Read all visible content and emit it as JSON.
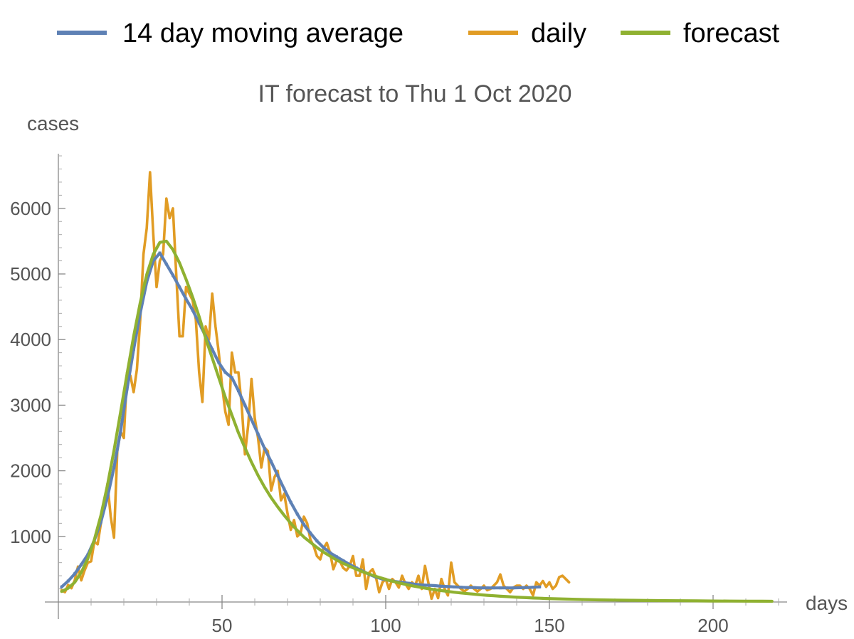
{
  "chart_data": {
    "type": "line",
    "title": "IT forecast to Thu 1 Oct 2020",
    "xlabel": "days",
    "ylabel": "cases",
    "xlim": [
      0,
      220
    ],
    "ylim": [
      0,
      6900
    ],
    "x_ticks": [
      50,
      100,
      150,
      200
    ],
    "y_ticks": [
      1000,
      2000,
      3000,
      4000,
      5000,
      6000
    ],
    "grid": false,
    "legend_position": "top",
    "series": [
      {
        "name": "14 day moving average",
        "color": "#5e81b5",
        "points": [
          [
            1,
            230
          ],
          [
            3,
            320
          ],
          [
            5,
            430
          ],
          [
            7,
            570
          ],
          [
            9,
            720
          ],
          [
            11,
            940
          ],
          [
            13,
            1220
          ],
          [
            15,
            1600
          ],
          [
            17,
            2050
          ],
          [
            19,
            2600
          ],
          [
            21,
            3250
          ],
          [
            23,
            3850
          ],
          [
            25,
            4400
          ],
          [
            27,
            4880
          ],
          [
            29,
            5200
          ],
          [
            31,
            5320
          ],
          [
            33,
            5150
          ],
          [
            35,
            4980
          ],
          [
            37,
            4800
          ],
          [
            39,
            4620
          ],
          [
            41,
            4450
          ],
          [
            43,
            4250
          ],
          [
            45,
            4050
          ],
          [
            47,
            3850
          ],
          [
            49,
            3650
          ],
          [
            51,
            3500
          ],
          [
            53,
            3420
          ],
          [
            55,
            3220
          ],
          [
            57,
            3000
          ],
          [
            59,
            2780
          ],
          [
            61,
            2560
          ],
          [
            63,
            2340
          ],
          [
            65,
            2140
          ],
          [
            67,
            1930
          ],
          [
            69,
            1720
          ],
          [
            71,
            1520
          ],
          [
            73,
            1340
          ],
          [
            75,
            1180
          ],
          [
            77,
            1050
          ],
          [
            79,
            930
          ],
          [
            81,
            830
          ],
          [
            83,
            750
          ],
          [
            85,
            690
          ],
          [
            87,
            630
          ],
          [
            89,
            570
          ],
          [
            91,
            520
          ],
          [
            93,
            470
          ],
          [
            95,
            420
          ],
          [
            97,
            380
          ],
          [
            99,
            350
          ],
          [
            101,
            330
          ],
          [
            103,
            310
          ],
          [
            105,
            300
          ],
          [
            107,
            285
          ],
          [
            109,
            270
          ],
          [
            111,
            260
          ],
          [
            113,
            255
          ],
          [
            115,
            250
          ],
          [
            117,
            240
          ],
          [
            119,
            235
          ],
          [
            121,
            230
          ],
          [
            123,
            225
          ],
          [
            125,
            220
          ],
          [
            127,
            220
          ],
          [
            129,
            215
          ],
          [
            131,
            215
          ],
          [
            133,
            215
          ],
          [
            135,
            215
          ],
          [
            137,
            215
          ],
          [
            139,
            215
          ],
          [
            141,
            218
          ],
          [
            143,
            220
          ],
          [
            145,
            225
          ],
          [
            147,
            230
          ]
        ]
      },
      {
        "name": "daily",
        "color": "#e19c24",
        "points": [
          [
            1,
            180
          ],
          [
            2,
            150
          ],
          [
            3,
            260
          ],
          [
            4,
            210
          ],
          [
            5,
            330
          ],
          [
            6,
            540
          ],
          [
            7,
            330
          ],
          [
            8,
            480
          ],
          [
            9,
            600
          ],
          [
            10,
            620
          ],
          [
            11,
            920
          ],
          [
            12,
            880
          ],
          [
            13,
            1200
          ],
          [
            14,
            1500
          ],
          [
            15,
            1800
          ],
          [
            16,
            1300
          ],
          [
            17,
            980
          ],
          [
            18,
            2300
          ],
          [
            19,
            2600
          ],
          [
            20,
            2500
          ],
          [
            21,
            3500
          ],
          [
            22,
            3450
          ],
          [
            23,
            3200
          ],
          [
            24,
            3550
          ],
          [
            25,
            4300
          ],
          [
            26,
            5300
          ],
          [
            27,
            5700
          ],
          [
            28,
            6550
          ],
          [
            29,
            5600
          ],
          [
            30,
            4800
          ],
          [
            31,
            5200
          ],
          [
            32,
            5300
          ],
          [
            33,
            6150
          ],
          [
            34,
            5850
          ],
          [
            35,
            6000
          ],
          [
            36,
            5000
          ],
          [
            37,
            4050
          ],
          [
            38,
            4050
          ],
          [
            39,
            4800
          ],
          [
            40,
            4700
          ],
          [
            41,
            4600
          ],
          [
            42,
            4300
          ],
          [
            43,
            3500
          ],
          [
            44,
            3050
          ],
          [
            45,
            4200
          ],
          [
            46,
            4000
          ],
          [
            47,
            4700
          ],
          [
            48,
            4200
          ],
          [
            49,
            3800
          ],
          [
            50,
            3300
          ],
          [
            51,
            2900
          ],
          [
            52,
            2700
          ],
          [
            53,
            3800
          ],
          [
            54,
            3500
          ],
          [
            55,
            3500
          ],
          [
            56,
            3000
          ],
          [
            57,
            2250
          ],
          [
            58,
            2700
          ],
          [
            59,
            3400
          ],
          [
            60,
            2800
          ],
          [
            61,
            2500
          ],
          [
            62,
            2050
          ],
          [
            63,
            2350
          ],
          [
            64,
            2300
          ],
          [
            65,
            1700
          ],
          [
            66,
            1900
          ],
          [
            67,
            2000
          ],
          [
            68,
            1550
          ],
          [
            69,
            1650
          ],
          [
            70,
            1350
          ],
          [
            71,
            1100
          ],
          [
            72,
            1250
          ],
          [
            73,
            1000
          ],
          [
            74,
            1050
          ],
          [
            75,
            1300
          ],
          [
            76,
            1200
          ],
          [
            77,
            950
          ],
          [
            78,
            850
          ],
          [
            79,
            700
          ],
          [
            80,
            650
          ],
          [
            81,
            820
          ],
          [
            82,
            900
          ],
          [
            83,
            750
          ],
          [
            84,
            500
          ],
          [
            85,
            630
          ],
          [
            86,
            620
          ],
          [
            87,
            520
          ],
          [
            88,
            480
          ],
          [
            89,
            550
          ],
          [
            90,
            700
          ],
          [
            91,
            400
          ],
          [
            92,
            400
          ],
          [
            93,
            650
          ],
          [
            94,
            200
          ],
          [
            95,
            450
          ],
          [
            96,
            500
          ],
          [
            97,
            380
          ],
          [
            98,
            150
          ],
          [
            99,
            300
          ],
          [
            100,
            350
          ],
          [
            101,
            200
          ],
          [
            102,
            350
          ],
          [
            103,
            300
          ],
          [
            104,
            220
          ],
          [
            105,
            400
          ],
          [
            106,
            280
          ],
          [
            107,
            200
          ],
          [
            108,
            300
          ],
          [
            109,
            250
          ],
          [
            110,
            400
          ],
          [
            111,
            200
          ],
          [
            112,
            550
          ],
          [
            113,
            300
          ],
          [
            114,
            50
          ],
          [
            115,
            200
          ],
          [
            116,
            60
          ],
          [
            117,
            350
          ],
          [
            118,
            200
          ],
          [
            119,
            100
          ],
          [
            120,
            600
          ],
          [
            121,
            300
          ],
          [
            122,
            250
          ],
          [
            123,
            200
          ],
          [
            124,
            160
          ],
          [
            125,
            200
          ],
          [
            126,
            250
          ],
          [
            127,
            200
          ],
          [
            128,
            160
          ],
          [
            129,
            200
          ],
          [
            130,
            250
          ],
          [
            131,
            180
          ],
          [
            132,
            200
          ],
          [
            133,
            250
          ],
          [
            134,
            300
          ],
          [
            135,
            420
          ],
          [
            136,
            250
          ],
          [
            137,
            200
          ],
          [
            138,
            150
          ],
          [
            139,
            220
          ],
          [
            140,
            250
          ],
          [
            141,
            250
          ],
          [
            142,
            200
          ],
          [
            143,
            250
          ],
          [
            144,
            200
          ],
          [
            145,
            100
          ],
          [
            146,
            300
          ],
          [
            147,
            250
          ],
          [
            148,
            320
          ],
          [
            149,
            230
          ],
          [
            150,
            300
          ],
          [
            151,
            200
          ],
          [
            152,
            250
          ],
          [
            153,
            380
          ],
          [
            154,
            400
          ],
          [
            155,
            350
          ],
          [
            156,
            300
          ]
        ]
      },
      {
        "name": "forecast",
        "color": "#8fb131",
        "points": [
          [
            1,
            160
          ],
          [
            3,
            210
          ],
          [
            5,
            300
          ],
          [
            7,
            450
          ],
          [
            9,
            660
          ],
          [
            11,
            950
          ],
          [
            13,
            1320
          ],
          [
            15,
            1780
          ],
          [
            17,
            2310
          ],
          [
            19,
            2890
          ],
          [
            21,
            3480
          ],
          [
            23,
            4050
          ],
          [
            25,
            4560
          ],
          [
            27,
            4990
          ],
          [
            29,
            5300
          ],
          [
            31,
            5480
          ],
          [
            33,
            5500
          ],
          [
            35,
            5370
          ],
          [
            37,
            5170
          ],
          [
            39,
            4920
          ],
          [
            41,
            4650
          ],
          [
            43,
            4350
          ],
          [
            45,
            4020
          ],
          [
            47,
            3720
          ],
          [
            49,
            3420
          ],
          [
            51,
            3120
          ],
          [
            53,
            2850
          ],
          [
            55,
            2580
          ],
          [
            57,
            2350
          ],
          [
            59,
            2130
          ],
          [
            61,
            1930
          ],
          [
            63,
            1750
          ],
          [
            65,
            1590
          ],
          [
            67,
            1450
          ],
          [
            69,
            1320
          ],
          [
            71,
            1200
          ],
          [
            73,
            1090
          ],
          [
            75,
            990
          ],
          [
            77,
            910
          ],
          [
            79,
            830
          ],
          [
            81,
            760
          ],
          [
            83,
            700
          ],
          [
            85,
            640
          ],
          [
            87,
            590
          ],
          [
            89,
            545
          ],
          [
            91,
            500
          ],
          [
            93,
            460
          ],
          [
            95,
            425
          ],
          [
            97,
            390
          ],
          [
            99,
            360
          ],
          [
            101,
            330
          ],
          [
            103,
            305
          ],
          [
            105,
            280
          ],
          [
            107,
            258
          ],
          [
            109,
            238
          ],
          [
            111,
            220
          ],
          [
            113,
            203
          ],
          [
            115,
            188
          ],
          [
            117,
            174
          ],
          [
            119,
            161
          ],
          [
            121,
            149
          ],
          [
            123,
            138
          ],
          [
            125,
            128
          ],
          [
            127,
            119
          ],
          [
            129,
            110
          ],
          [
            131,
            102
          ],
          [
            133,
            95
          ],
          [
            135,
            88
          ],
          [
            137,
            82
          ],
          [
            139,
            76
          ],
          [
            141,
            71
          ],
          [
            143,
            66
          ],
          [
            145,
            61
          ],
          [
            147,
            57
          ],
          [
            149,
            53
          ],
          [
            151,
            50
          ],
          [
            155,
            44
          ],
          [
            160,
            38
          ],
          [
            165,
            33
          ],
          [
            170,
            29
          ],
          [
            175,
            26
          ],
          [
            180,
            23
          ],
          [
            185,
            21
          ],
          [
            190,
            19
          ],
          [
            195,
            17
          ],
          [
            200,
            15
          ],
          [
            205,
            14
          ],
          [
            210,
            13
          ],
          [
            215,
            12
          ],
          [
            218,
            11
          ]
        ]
      }
    ]
  }
}
